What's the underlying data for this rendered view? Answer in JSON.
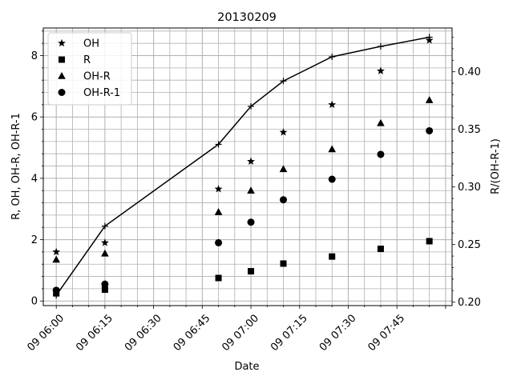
{
  "chart_data": {
    "type": "scatter",
    "title": "20130209",
    "xlabel": "Date",
    "ylabel": "R, OH, OH-R, OH-R-1",
    "y2label": "R/(OH-R-1)",
    "x_range": [
      "2013-02-09 05:56",
      "2013-02-09 08:02"
    ],
    "y_range": [
      -0.15,
      8.9
    ],
    "y2_range": [
      0.197,
      0.438
    ],
    "x_ticks": [
      {
        "t": "2013-02-09 06:00",
        "label": "09 06:00"
      },
      {
        "t": "2013-02-09 06:15",
        "label": "09 06:15"
      },
      {
        "t": "2013-02-09 06:30",
        "label": "09 06:30"
      },
      {
        "t": "2013-02-09 06:45",
        "label": "09 06:45"
      },
      {
        "t": "2013-02-09 07:00",
        "label": "09 07:00"
      },
      {
        "t": "2013-02-09 07:15",
        "label": "09 07:15"
      },
      {
        "t": "2013-02-09 07:30",
        "label": "09 07:30"
      },
      {
        "t": "2013-02-09 07:45",
        "label": "09 07:45"
      }
    ],
    "y_ticks": [
      0,
      2,
      4,
      6,
      8
    ],
    "y2_ticks": [
      0.2,
      0.25,
      0.3,
      0.35,
      0.4
    ],
    "grid": true,
    "legend_position": "top-left",
    "x": [
      "2013-02-09 06:00",
      "2013-02-09 06:15",
      "2013-02-09 06:50",
      "2013-02-09 07:00",
      "2013-02-09 07:10",
      "2013-02-09 07:25",
      "2013-02-09 07:40",
      "2013-02-09 07:55"
    ],
    "series": [
      {
        "name": "OH",
        "marker": "star",
        "axis": "left",
        "values": [
          1.6,
          1.9,
          3.65,
          4.55,
          5.5,
          6.4,
          7.5,
          8.5
        ]
      },
      {
        "name": "R",
        "marker": "square",
        "axis": "left",
        "values": [
          0.25,
          0.37,
          0.75,
          0.97,
          1.22,
          1.45,
          1.7,
          1.95
        ]
      },
      {
        "name": "OH-R",
        "marker": "triangle",
        "axis": "left",
        "values": [
          1.35,
          1.55,
          2.9,
          3.6,
          4.3,
          4.95,
          5.8,
          6.55
        ]
      },
      {
        "name": "OH-R-1",
        "marker": "circle",
        "axis": "left",
        "values": [
          0.35,
          0.55,
          1.9,
          2.57,
          3.3,
          3.97,
          4.78,
          5.55
        ]
      },
      {
        "marker": "plus",
        "line": true,
        "axis": "right",
        "values": [
          0.206,
          0.266,
          0.337,
          0.37,
          0.392,
          0.413,
          0.422,
          0.43
        ]
      }
    ]
  }
}
